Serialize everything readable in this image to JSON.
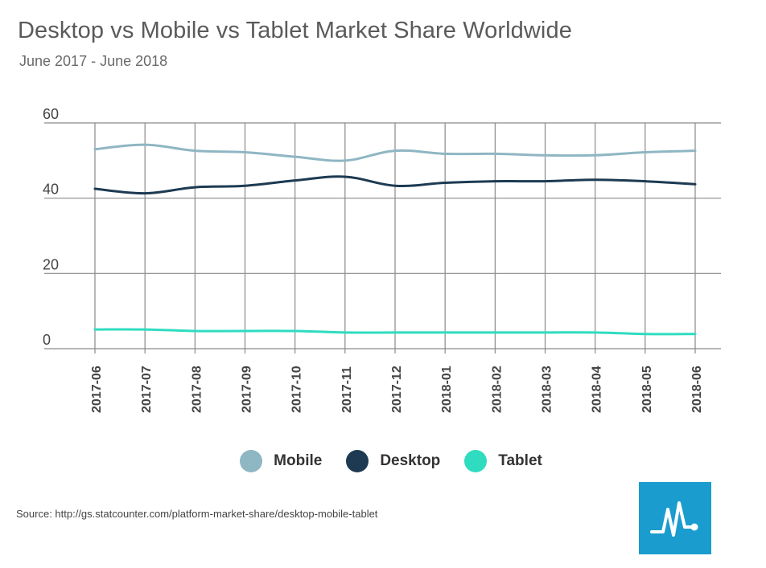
{
  "chart_data": {
    "type": "line",
    "title": "Desktop vs Mobile vs Tablet Market Share Worldwide",
    "subtitle": "June 2017 - June 2018",
    "xlabel": "",
    "ylabel": "",
    "ylim": [
      0,
      60
    ],
    "yticks": [
      "0",
      "20",
      "40",
      "60"
    ],
    "grid": true,
    "legend_position": "bottom-center",
    "categories": [
      "2017-06",
      "2017-07",
      "2017-08",
      "2017-09",
      "2017-10",
      "2017-11",
      "2017-12",
      "2018-01",
      "2018-02",
      "2018-03",
      "2018-04",
      "2018-05",
      "2018-06"
    ],
    "series": [
      {
        "name": "Mobile",
        "color": "#8fb6c3",
        "values": [
          53.0,
          54.2,
          52.6,
          52.2,
          51.0,
          50.0,
          52.6,
          51.8,
          51.8,
          51.4,
          51.4,
          52.2,
          52.6
        ]
      },
      {
        "name": "Desktop",
        "color": "#1d3a52",
        "values": [
          42.5,
          41.3,
          42.9,
          43.3,
          44.7,
          45.7,
          43.3,
          44.1,
          44.5,
          44.5,
          44.9,
          44.5,
          43.7
        ]
      },
      {
        "name": "Tablet",
        "color": "#2fdcc0",
        "values": [
          5.1,
          5.1,
          4.7,
          4.7,
          4.7,
          4.3,
          4.3,
          4.3,
          4.3,
          4.3,
          4.3,
          3.9,
          3.9
        ]
      }
    ]
  },
  "source_text": "Source: http://gs.statcounter.com/platform-market-share/desktop-mobile-tablet",
  "logo": {
    "icon": "pulse-line-icon",
    "bg_color": "#1a9ccf"
  }
}
